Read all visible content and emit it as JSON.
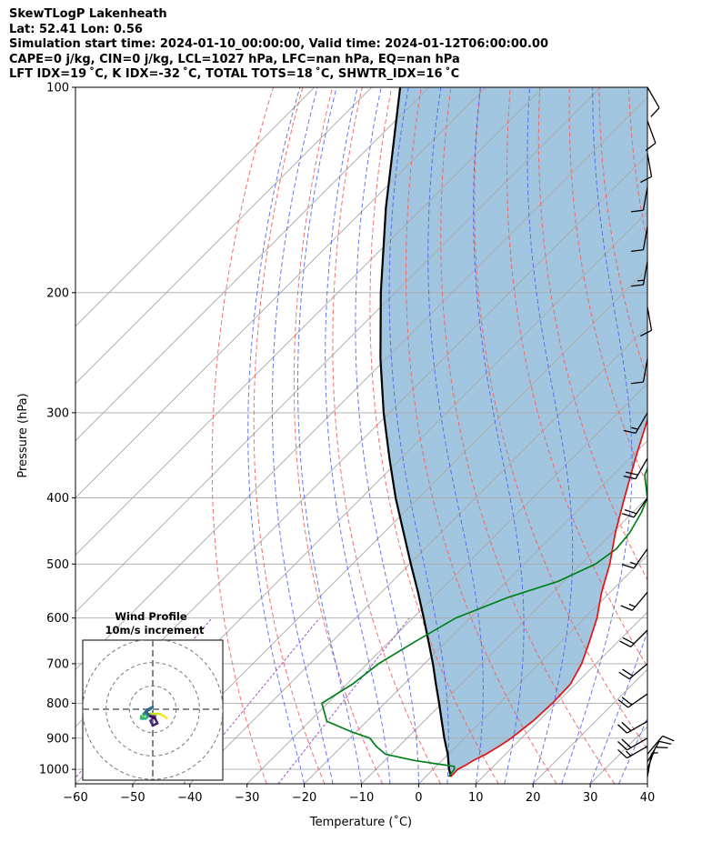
{
  "title_lines": [
    "SkewTLogP Lakenheath",
    "Lat: 52.41   Lon: 0.56",
    "Simulation start time: 2024-01-10_00:00:00, Valid time: 2024-01-12T06:00:00.00",
    "CAPE=0 j/kg, CIN=0 j/kg, LCL=1027 hPa, LFC=nan hPa, EQ=nan hPa",
    "LFT IDX=19 ˚C, K IDX=-32 ˚C, TOTAL TOTS=18 ˚C, SHWTR_IDX=16 ˚C"
  ],
  "chart_data": {
    "type": "skewt",
    "xlabel": "Temperature (˚C)",
    "ylabel": "Pressure (hPa)",
    "xlim": [
      -60,
      40
    ],
    "ylim": [
      1050,
      100
    ],
    "yscale": "log",
    "x_ticks": [
      "−60",
      "−50",
      "−40",
      "−30",
      "−20",
      "−10",
      "0",
      "10",
      "20",
      "30",
      "40"
    ],
    "x_tick_values": [
      -60,
      -50,
      -40,
      -30,
      -20,
      -10,
      0,
      10,
      20,
      30,
      40
    ],
    "y_ticks": [
      "100",
      "200",
      "300",
      "400",
      "500",
      "600",
      "700",
      "800",
      "900",
      "1000"
    ],
    "y_tick_values": [
      100,
      200,
      300,
      400,
      500,
      600,
      700,
      800,
      900,
      1000
    ],
    "grid": true,
    "colors": {
      "temperature": "#e81010",
      "dewpoint": "#00801a",
      "parcel": "#000000",
      "shade": "#a3c6e0",
      "dry_adiabat": "#f06060",
      "moist_adiabat": "#4a5ef0",
      "mixing_ratio": "#9a40c0",
      "isotherm": "#a8a8a8"
    },
    "temperature_profile": {
      "pressure": [
        1025,
        1000,
        985,
        970,
        950,
        925,
        900,
        850,
        800,
        750,
        700,
        650,
        600,
        550,
        500,
        450,
        400,
        350,
        300,
        280,
        250,
        220,
        200,
        190,
        180,
        170,
        160,
        150,
        140,
        130,
        120,
        110,
        100
      ],
      "temp": [
        4.4,
        4.3,
        5.0,
        5.5,
        6.6,
        7.5,
        8.2,
        9.0,
        9.3,
        9.1,
        7.5,
        5.0,
        2.2,
        -1.5,
        -5.0,
        -9.5,
        -14.0,
        -19.0,
        -24.5,
        -27.0,
        -31.0,
        -33.0,
        -33.0,
        -33.5,
        -32.0,
        -30.0,
        -27.5,
        -24.5,
        -21.0,
        -18.5,
        -16.0,
        -13.0,
        -11.5
      ]
    },
    "dewpoint_profile": {
      "pressure": [
        1025,
        1000,
        990,
        980,
        970,
        950,
        925,
        900,
        880,
        850,
        800,
        750,
        700,
        650,
        600,
        560,
        530,
        500,
        475,
        450,
        420,
        400,
        370,
        340,
        320,
        300,
        250,
        215,
        190,
        165,
        150,
        140,
        130,
        120,
        110,
        100
      ],
      "dewpt": [
        4.0,
        3.7,
        3.2,
        -1.0,
        -5.0,
        -11.0,
        -14.0,
        -16.5,
        -21.0,
        -27.0,
        -31.0,
        -29.0,
        -28.0,
        -25.5,
        -22.5,
        -17.0,
        -11.0,
        -7.5,
        -6.5,
        -7.0,
        -8.5,
        -10.0,
        -14.5,
        -17.0,
        -18.0,
        -20.0,
        -26.5,
        -34.0,
        -31.5,
        -29.0,
        -28.5,
        -26.5,
        -23.5,
        -20.5,
        -17.5,
        -14.5
      ]
    },
    "parcel_profile": {
      "pressure": [
        1025,
        1000,
        950,
        900,
        850,
        800,
        750,
        700,
        650,
        600,
        550,
        500,
        450,
        400,
        350,
        300,
        250,
        200,
        150,
        100
      ],
      "temp": [
        4.4,
        2.8,
        -0.1,
        -3.5,
        -6.9,
        -10.5,
        -14.4,
        -18.5,
        -23.1,
        -28.1,
        -33.6,
        -39.8,
        -46.5,
        -54.0,
        -62.0,
        -71.0,
        -81.0,
        -92.5,
        -106.5,
        -125.0
      ]
    },
    "wind_barbs": [
      {
        "pressure": 1025,
        "speed_kt": 8,
        "dir_deg": 10
      },
      {
        "pressure": 1000,
        "speed_kt": 10,
        "dir_deg": 20
      },
      {
        "pressure": 975,
        "speed_kt": 10,
        "dir_deg": 30
      },
      {
        "pressure": 950,
        "speed_kt": 10,
        "dir_deg": 40
      },
      {
        "pressure": 925,
        "speed_kt": 15,
        "dir_deg": 240
      },
      {
        "pressure": 900,
        "speed_kt": 20,
        "dir_deg": 240
      },
      {
        "pressure": 850,
        "speed_kt": 20,
        "dir_deg": 240
      },
      {
        "pressure": 775,
        "speed_kt": 20,
        "dir_deg": 235
      },
      {
        "pressure": 700,
        "speed_kt": 20,
        "dir_deg": 230
      },
      {
        "pressure": 625,
        "speed_kt": 20,
        "dir_deg": 225
      },
      {
        "pressure": 550,
        "speed_kt": 15,
        "dir_deg": 220
      },
      {
        "pressure": 475,
        "speed_kt": 15,
        "dir_deg": 215
      },
      {
        "pressure": 400,
        "speed_kt": 20,
        "dir_deg": 215
      },
      {
        "pressure": 350,
        "speed_kt": 20,
        "dir_deg": 210
      },
      {
        "pressure": 300,
        "speed_kt": 15,
        "dir_deg": 210
      },
      {
        "pressure": 250,
        "speed_kt": 10,
        "dir_deg": 190
      },
      {
        "pressure": 210,
        "speed_kt": 10,
        "dir_deg": 170
      },
      {
        "pressure": 180,
        "speed_kt": 15,
        "dir_deg": 190
      },
      {
        "pressure": 160,
        "speed_kt": 10,
        "dir_deg": 190
      },
      {
        "pressure": 140,
        "speed_kt": 10,
        "dir_deg": 190
      },
      {
        "pressure": 125,
        "speed_kt": 10,
        "dir_deg": 170
      },
      {
        "pressure": 112,
        "speed_kt": 10,
        "dir_deg": 160
      },
      {
        "pressure": 100,
        "speed_kt": 10,
        "dir_deg": 150
      }
    ],
    "inset": {
      "title_line1": "Wind Profile",
      "title_line2": "10m/s increment",
      "ring_increment_ms": 10,
      "rings": 3,
      "range_ms": 30,
      "hodograph_uv": [
        [
          6,
          -4
        ],
        [
          5,
          -3
        ],
        [
          3,
          -2
        ],
        [
          1,
          -2
        ],
        [
          -1,
          -2
        ],
        [
          -3,
          -2
        ],
        [
          -4,
          -3
        ],
        [
          -5,
          -3
        ],
        [
          -5,
          -4
        ],
        [
          -3,
          -4
        ],
        [
          -2,
          -3
        ],
        [
          -3,
          -2
        ],
        [
          -4,
          -2
        ],
        [
          -3,
          -1
        ],
        [
          -1,
          0
        ],
        [
          0,
          1
        ],
        [
          -2,
          0
        ],
        [
          -3,
          -1
        ],
        [
          -1,
          -3
        ],
        [
          1,
          -3
        ],
        [
          -1,
          -5
        ],
        [
          0,
          -7
        ],
        [
          2,
          -6
        ],
        [
          1,
          -4
        ],
        [
          -1,
          -3
        ]
      ]
    }
  }
}
